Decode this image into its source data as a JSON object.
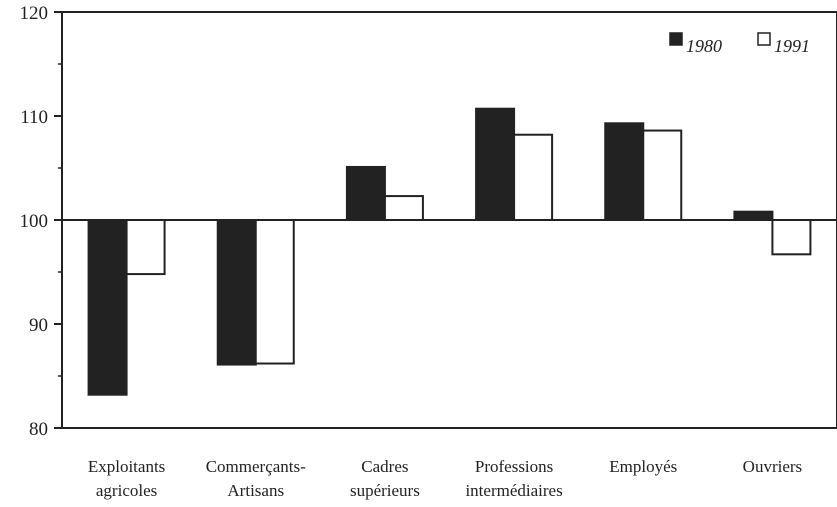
{
  "chart_data": {
    "type": "bar",
    "categories": [
      [
        "Exploitants",
        "agricoles"
      ],
      [
        "Commerçants-",
        "Artisans"
      ],
      [
        "Cadres",
        "supérieurs"
      ],
      [
        "Professions",
        "intermédiaires"
      ],
      [
        "Employés"
      ],
      [
        "Ouvriers"
      ]
    ],
    "series": [
      {
        "name": "1980",
        "values": [
          83.2,
          86.1,
          105.1,
          110.7,
          109.3,
          100.8
        ],
        "color": "#222222",
        "fill": "solid"
      },
      {
        "name": "1991",
        "values": [
          94.8,
          86.2,
          102.3,
          108.2,
          108.6,
          96.7
        ],
        "color": "#ffffff",
        "fill": "outline"
      }
    ],
    "baseline": 100,
    "ylim": [
      80,
      120
    ],
    "yticks": [
      "80",
      "90",
      "100",
      "110",
      "120"
    ],
    "legend_position": "top-right",
    "grid": false
  }
}
